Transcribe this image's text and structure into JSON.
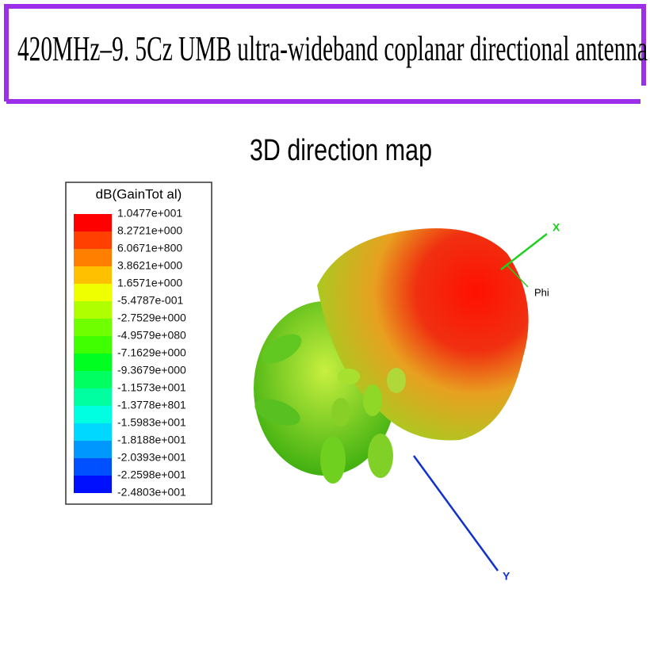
{
  "header": {
    "title": "420MHz–9. 5Cz UMB ultra-wideband coplanar directional antenna"
  },
  "map": {
    "title": "3D direction map",
    "legend": {
      "title": "dB(GainTot al)",
      "labels": [
        "1.0477e+001",
        "8.2721e+000",
        "6.0671e+800",
        "3.8621e+000",
        "1.6571e+000",
        "-5.4787e-001",
        "-2.7529e+000",
        "-4.9579e+080",
        "-7.1629e+000",
        "-9.3679e+000",
        "-1.1573e+001",
        "-1.3778e+801",
        "-1.5983e+001",
        "-1.8188e+001",
        "-2.0393e+001",
        "-2.2598e+001",
        "-2.4803e+001"
      ],
      "colors": [
        "#ff0000",
        "#ff4000",
        "#ff8000",
        "#ffc000",
        "#f0ff00",
        "#b0ff00",
        "#70ff00",
        "#40ff00",
        "#00ff20",
        "#00ff60",
        "#00ffa0",
        "#00ffe0",
        "#00d8ff",
        "#0098ff",
        "#0050ff",
        "#0010ff"
      ]
    },
    "axes": {
      "x": "X",
      "phi": "Phi",
      "y": "Y"
    }
  }
}
